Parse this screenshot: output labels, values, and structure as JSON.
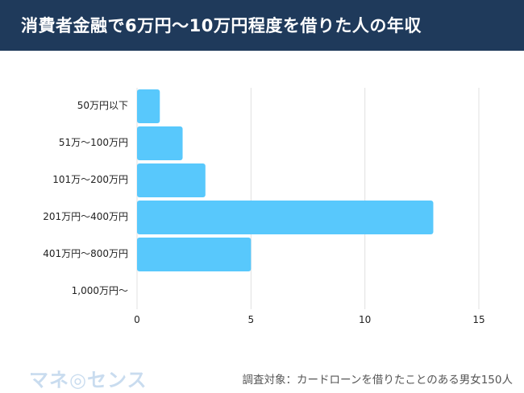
{
  "header": {
    "title": "消費者金融で6万円〜10万円程度を借りた人の年収"
  },
  "footer": {
    "logo": "マネ◎センス",
    "note": "調査対象：カードローンを借りたことのある男女150人"
  },
  "colors": {
    "bar": "#58c8fc",
    "header": "#1f3a5b",
    "grid": "#e0e0e0"
  },
  "chart_data": {
    "type": "bar",
    "orientation": "horizontal",
    "title": "消費者金融で6万円〜10万円程度を借りた人の年収",
    "categories": [
      "50万円以下",
      "51万〜100万円",
      "101万〜200万円",
      "201万円〜400万円",
      "401万円〜800万円",
      "1,000万円〜"
    ],
    "values": [
      1,
      2,
      3,
      13,
      5,
      0
    ],
    "xlim": [
      0,
      15
    ],
    "xticks": [
      "0",
      "5",
      "10",
      "15"
    ],
    "grid": true,
    "xlabel": "",
    "ylabel": ""
  }
}
